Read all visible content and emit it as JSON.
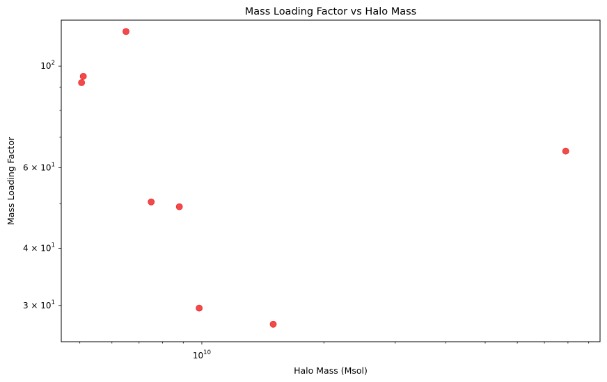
{
  "chart_data": {
    "type": "scatter",
    "title": "Mass Loading Factor vs Halo Mass",
    "xlabel": "Halo Mass (Msol)",
    "ylabel": "Mass Loading Factor",
    "xscale": "log",
    "yscale": "log",
    "xlim": [
      4500000000.0,
      96000000000.0
    ],
    "ylim": [
      25.0,
      126.0
    ],
    "grid": false,
    "legend": "none",
    "marker_color": "#ee2a2a",
    "x_ticks": [
      {
        "value": 10000000000.0,
        "base": "10",
        "exp": "10"
      }
    ],
    "y_ticks": [
      {
        "value": 100,
        "base": "10",
        "exp": "2",
        "mult": ""
      },
      {
        "value": 60,
        "base": "10",
        "exp": "1",
        "mult": "6 × "
      },
      {
        "value": 40,
        "base": "10",
        "exp": "1",
        "mult": "4 × "
      },
      {
        "value": 30,
        "base": "10",
        "exp": "1",
        "mult": "3 × "
      }
    ],
    "x_minor_ticks": [
      5000000000.0,
      6000000000.0,
      7000000000.0,
      8000000000.0,
      9000000000.0,
      20000000000.0,
      30000000000.0,
      40000000000.0,
      50000000000.0,
      60000000000.0,
      70000000000.0,
      80000000000.0,
      90000000000.0
    ],
    "y_minor_ticks": [
      50,
      70,
      80,
      90
    ],
    "points": [
      {
        "x": 5050000000.0,
        "y": 92.0
      },
      {
        "x": 5100000000.0,
        "y": 95.0
      },
      {
        "x": 6500000000.0,
        "y": 119.0
      },
      {
        "x": 7500000000.0,
        "y": 50.5
      },
      {
        "x": 8800000000.0,
        "y": 49.3
      },
      {
        "x": 9850000000.0,
        "y": 29.6
      },
      {
        "x": 15000000000.0,
        "y": 27.3
      },
      {
        "x": 79000000000.0,
        "y": 65.2
      }
    ]
  }
}
